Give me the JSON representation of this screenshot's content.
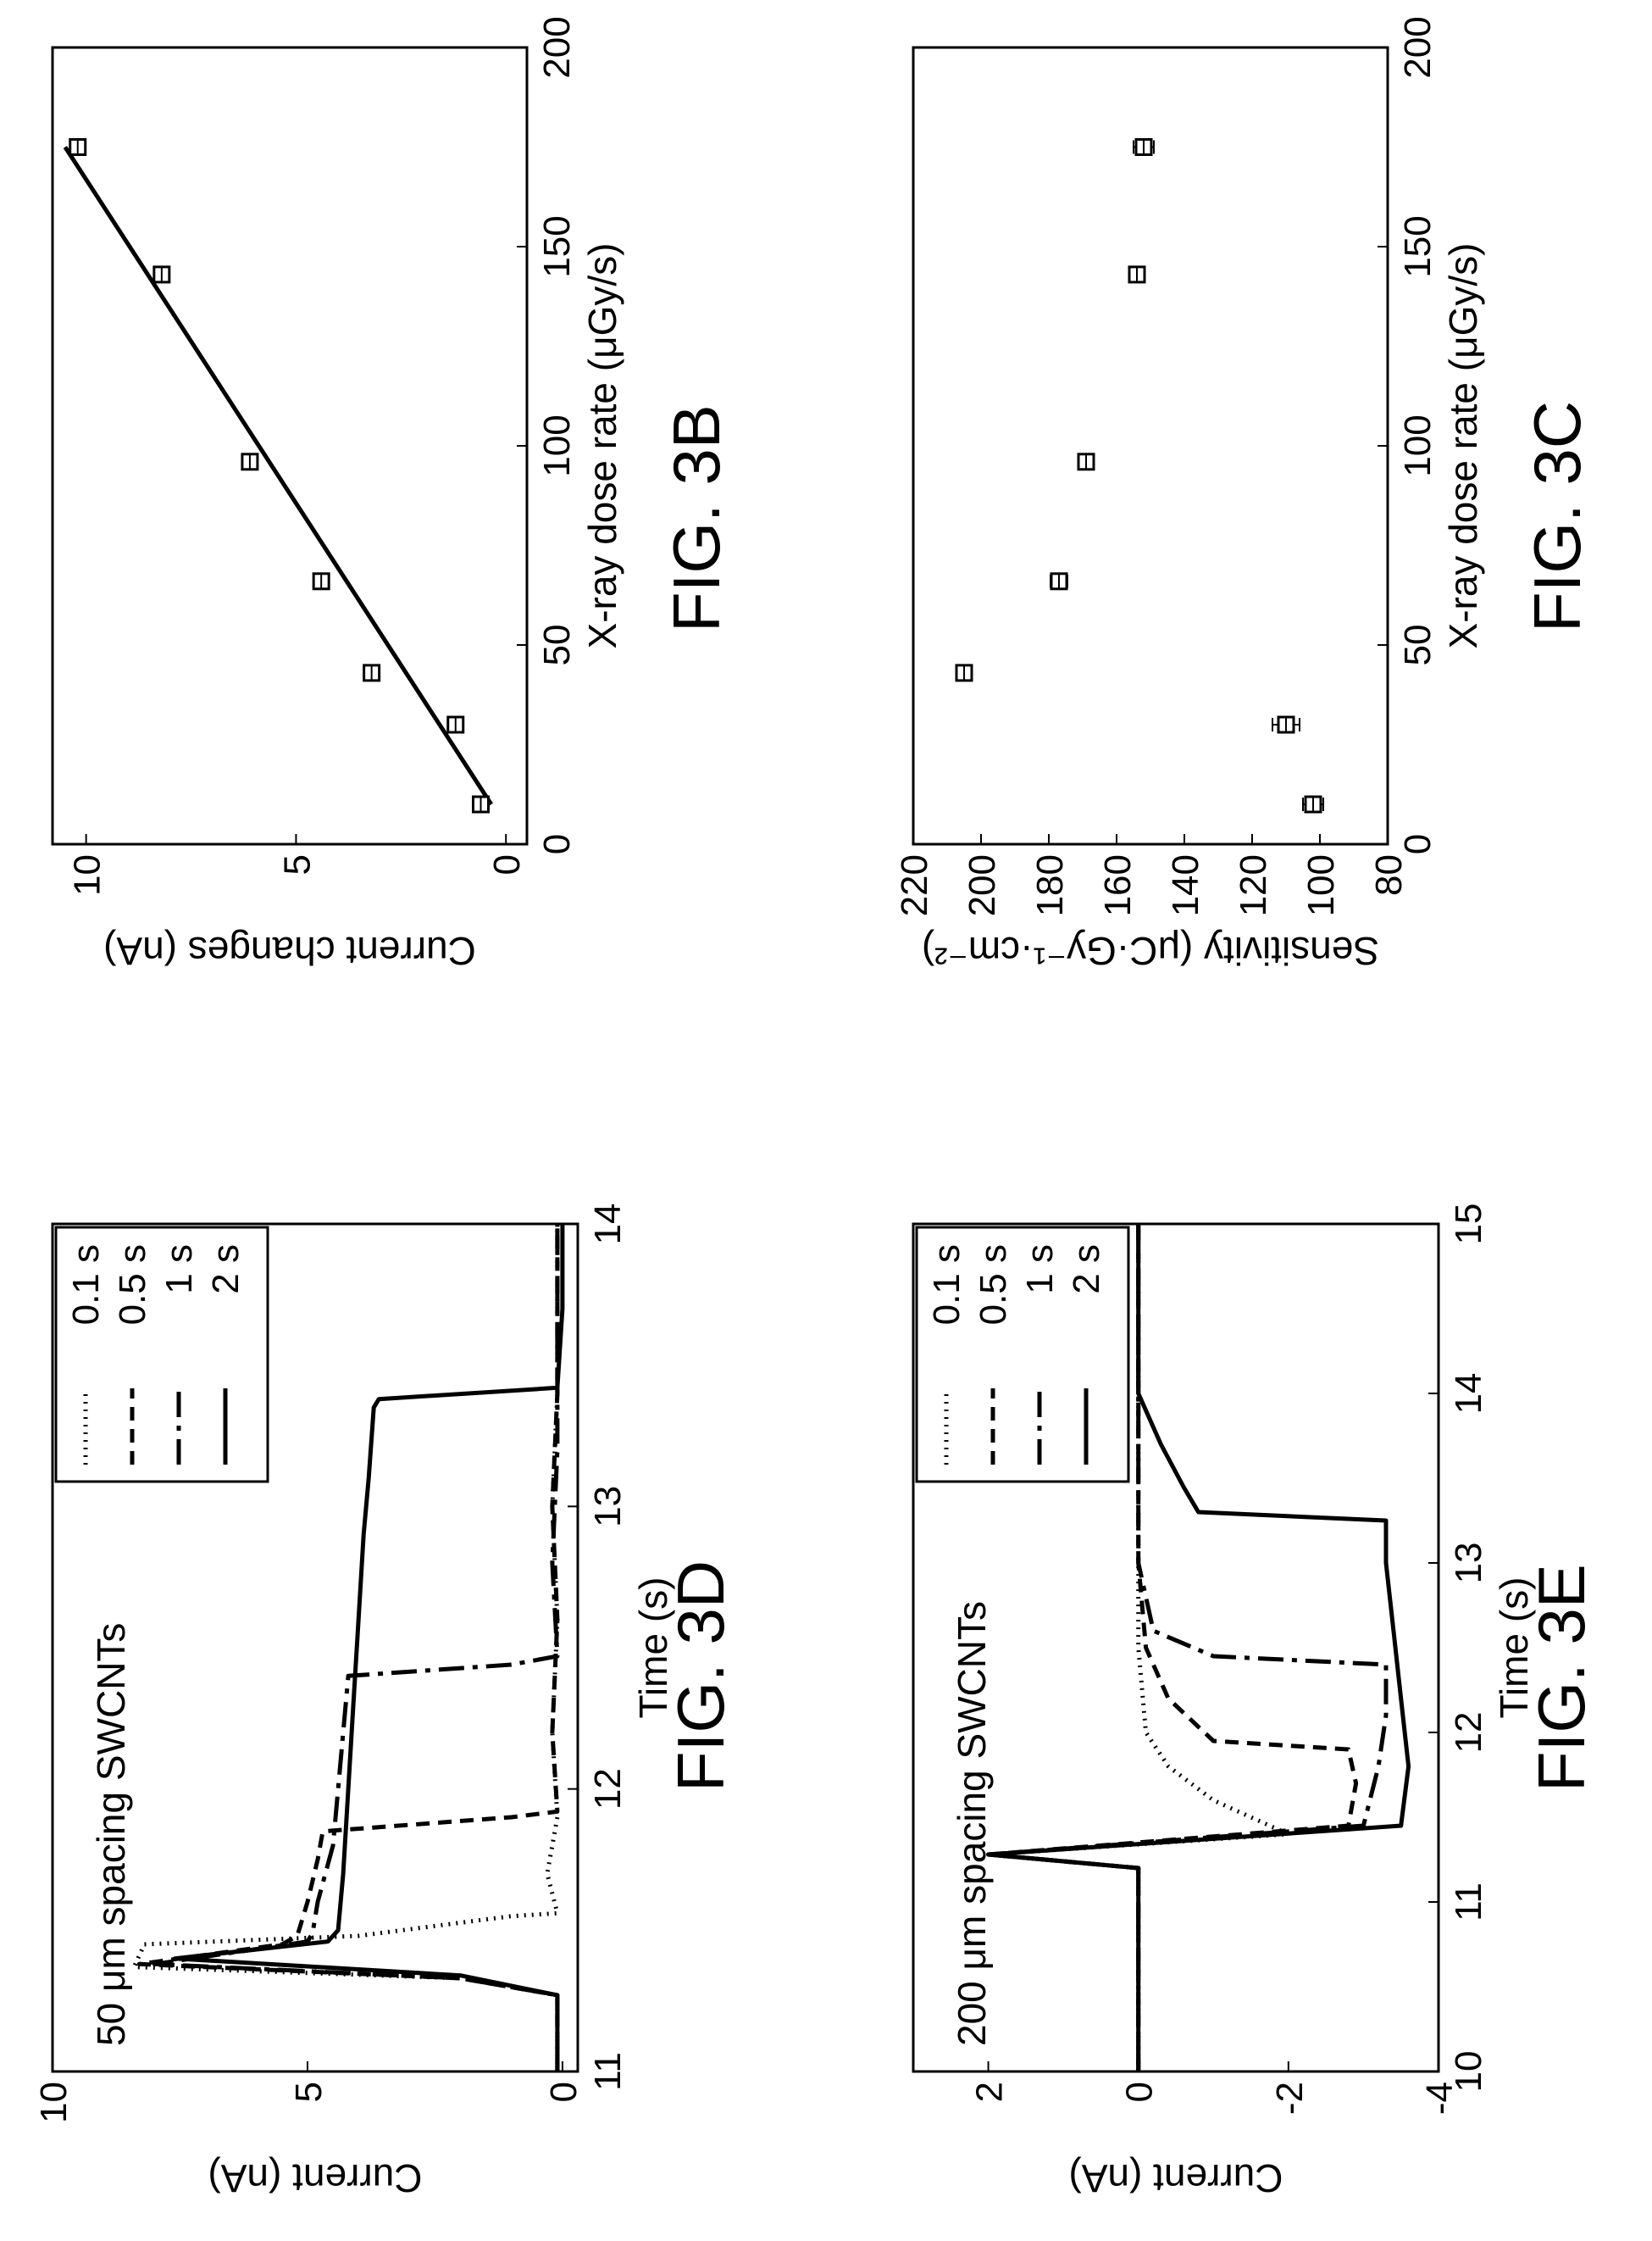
{
  "chart_data": [
    {
      "id": "fig3b",
      "caption": "FIG. 3B",
      "type": "scatter",
      "xlabel": "X-ray dose rate (μGy/s)",
      "ylabel": "Current changes (nA)",
      "xlim": [
        0,
        200
      ],
      "ylim": [
        -0.5,
        10.8
      ],
      "xticks": [
        0,
        50,
        100,
        150,
        200
      ],
      "yticks": [
        0,
        5,
        10
      ],
      "grid": false,
      "series": [
        {
          "x": [
            10,
            30,
            43,
            66,
            96,
            143,
            175
          ],
          "y": [
            0.6,
            1.2,
            3.2,
            4.4,
            6.1,
            8.2,
            10.2
          ]
        }
      ],
      "fit_line": {
        "x": [
          10,
          175
        ],
        "y": [
          0.35,
          10.5
        ]
      }
    },
    {
      "id": "fig3c",
      "caption": "FIG. 3C",
      "type": "scatter",
      "xlabel": "X-ray dose rate (μGy/s)",
      "ylabel": "Sensitivity (μC·Gy⁻¹·cm⁻²)",
      "xlim": [
        0,
        200
      ],
      "ylim": [
        80,
        220
      ],
      "xticks": [
        0,
        50,
        100,
        150,
        200
      ],
      "yticks": [
        80,
        100,
        120,
        140,
        160,
        180,
        200,
        220
      ],
      "grid": false,
      "series": [
        {
          "x": [
            10,
            30,
            43,
            66,
            96,
            143,
            175
          ],
          "y": [
            102,
            110,
            205,
            177,
            169,
            154,
            152
          ],
          "err": [
            3,
            4,
            1.5,
            2.5,
            2,
            2,
            3
          ]
        }
      ]
    },
    {
      "id": "fig3d",
      "caption": "FIG. 3D",
      "type": "line",
      "annotation": "50 μm spacing SWCNTs",
      "xlabel": "Time (s)",
      "ylabel": "Current (nA)",
      "xlim": [
        11,
        14
      ],
      "ylim": [
        -0.3,
        10
      ],
      "xticks": [
        11,
        12,
        13,
        14
      ],
      "yticks": [
        0,
        5,
        10
      ],
      "legend_position": "top-right",
      "series": [
        {
          "name": "0.1 s",
          "style": "dotted",
          "x": [
            11.0,
            11.27,
            11.33,
            11.37,
            11.45,
            11.48,
            11.55,
            11.56,
            11.7,
            11.9,
            12.2,
            12.6,
            13.0,
            13.4,
            14.0
          ],
          "y": [
            0.1,
            0.1,
            2.0,
            8.4,
            8.2,
            4.0,
            1.0,
            0.1,
            0.3,
            0.1,
            0.2,
            0.1,
            0.2,
            0.1,
            0.1
          ]
        },
        {
          "name": "0.5 s",
          "style": "dashed",
          "x": [
            11.0,
            11.27,
            11.33,
            11.38,
            11.45,
            11.48,
            11.6,
            11.75,
            11.85,
            11.9,
            11.92,
            12.2,
            12.6,
            13.0,
            13.4,
            14.0
          ],
          "y": [
            0.1,
            0.1,
            2.0,
            8.3,
            5.5,
            5.2,
            5.0,
            4.8,
            4.7,
            1.0,
            0.1,
            0.2,
            0.1,
            0.2,
            0.1,
            0.1
          ]
        },
        {
          "name": "1 s",
          "style": "dashdot",
          "x": [
            11.0,
            11.27,
            11.33,
            11.38,
            11.46,
            11.49,
            11.6,
            11.8,
            12.0,
            12.2,
            12.4,
            12.44,
            12.47,
            12.8,
            13.2,
            14.0
          ],
          "y": [
            0.1,
            0.1,
            2.0,
            8.0,
            5.0,
            4.9,
            4.8,
            4.5,
            4.4,
            4.3,
            4.2,
            1.0,
            0.1,
            0.2,
            0.1,
            0.1
          ]
        },
        {
          "name": "2 s",
          "style": "solid",
          "x": [
            11.0,
            11.27,
            11.34,
            11.4,
            11.46,
            11.5,
            11.7,
            12.0,
            12.3,
            12.6,
            12.9,
            13.1,
            13.35,
            13.38,
            13.42,
            13.7,
            14.0
          ],
          "y": [
            0.1,
            0.1,
            2.0,
            7.6,
            4.6,
            4.4,
            4.3,
            4.2,
            4.1,
            4.0,
            3.9,
            3.8,
            3.7,
            3.6,
            0.1,
            0.0,
            0.0
          ]
        }
      ]
    },
    {
      "id": "fig3e",
      "caption": "FIG. 3E",
      "type": "line",
      "annotation": "200 μm spacing SWCNTs",
      "xlabel": "Time (s)",
      "ylabel": "Current (nA)",
      "xlim": [
        10,
        15
      ],
      "ylim": [
        -4,
        3
      ],
      "xticks": [
        10,
        11,
        12,
        13,
        14,
        15
      ],
      "yticks": [
        -4,
        -2,
        0,
        2
      ],
      "legend_position": "top-right",
      "series": [
        {
          "name": "0.1 s",
          "style": "dotted",
          "x": [
            10.0,
            11.2,
            11.28,
            11.4,
            11.6,
            11.8,
            12.0,
            12.5,
            13.0,
            13.5,
            14.0,
            14.5,
            15.0
          ],
          "y": [
            0.0,
            0.0,
            2.0,
            -2.0,
            -1.0,
            -0.4,
            -0.1,
            0.0,
            0.0,
            0.0,
            0.0,
            0.0,
            0.0
          ]
        },
        {
          "name": "0.5 s",
          "style": "dashed",
          "x": [
            10.0,
            11.2,
            11.28,
            11.45,
            11.7,
            11.9,
            11.95,
            12.2,
            12.5,
            13.0,
            14.0,
            15.0
          ],
          "y": [
            0.0,
            0.0,
            2.0,
            -2.8,
            -2.9,
            -2.8,
            -1.0,
            -0.4,
            -0.1,
            0.0,
            0.0,
            0.0
          ]
        },
        {
          "name": "1 s",
          "style": "dashdot",
          "x": [
            10.0,
            11.2,
            11.28,
            11.45,
            11.8,
            12.1,
            12.4,
            12.45,
            12.6,
            13.0,
            14.0,
            15.0
          ],
          "y": [
            0.0,
            0.0,
            2.0,
            -3.0,
            -3.2,
            -3.3,
            -3.3,
            -1.0,
            -0.2,
            0.0,
            0.0,
            0.0
          ]
        },
        {
          "name": "2 s",
          "style": "solid",
          "x": [
            10.0,
            11.2,
            11.28,
            11.45,
            11.8,
            12.2,
            12.6,
            13.0,
            13.25,
            13.3,
            13.45,
            13.7,
            14.0,
            15.0
          ],
          "y": [
            0.0,
            0.0,
            2.0,
            -3.5,
            -3.6,
            -3.5,
            -3.4,
            -3.3,
            -3.3,
            -0.8,
            -0.6,
            -0.3,
            0.0,
            0.0
          ]
        }
      ]
    }
  ]
}
